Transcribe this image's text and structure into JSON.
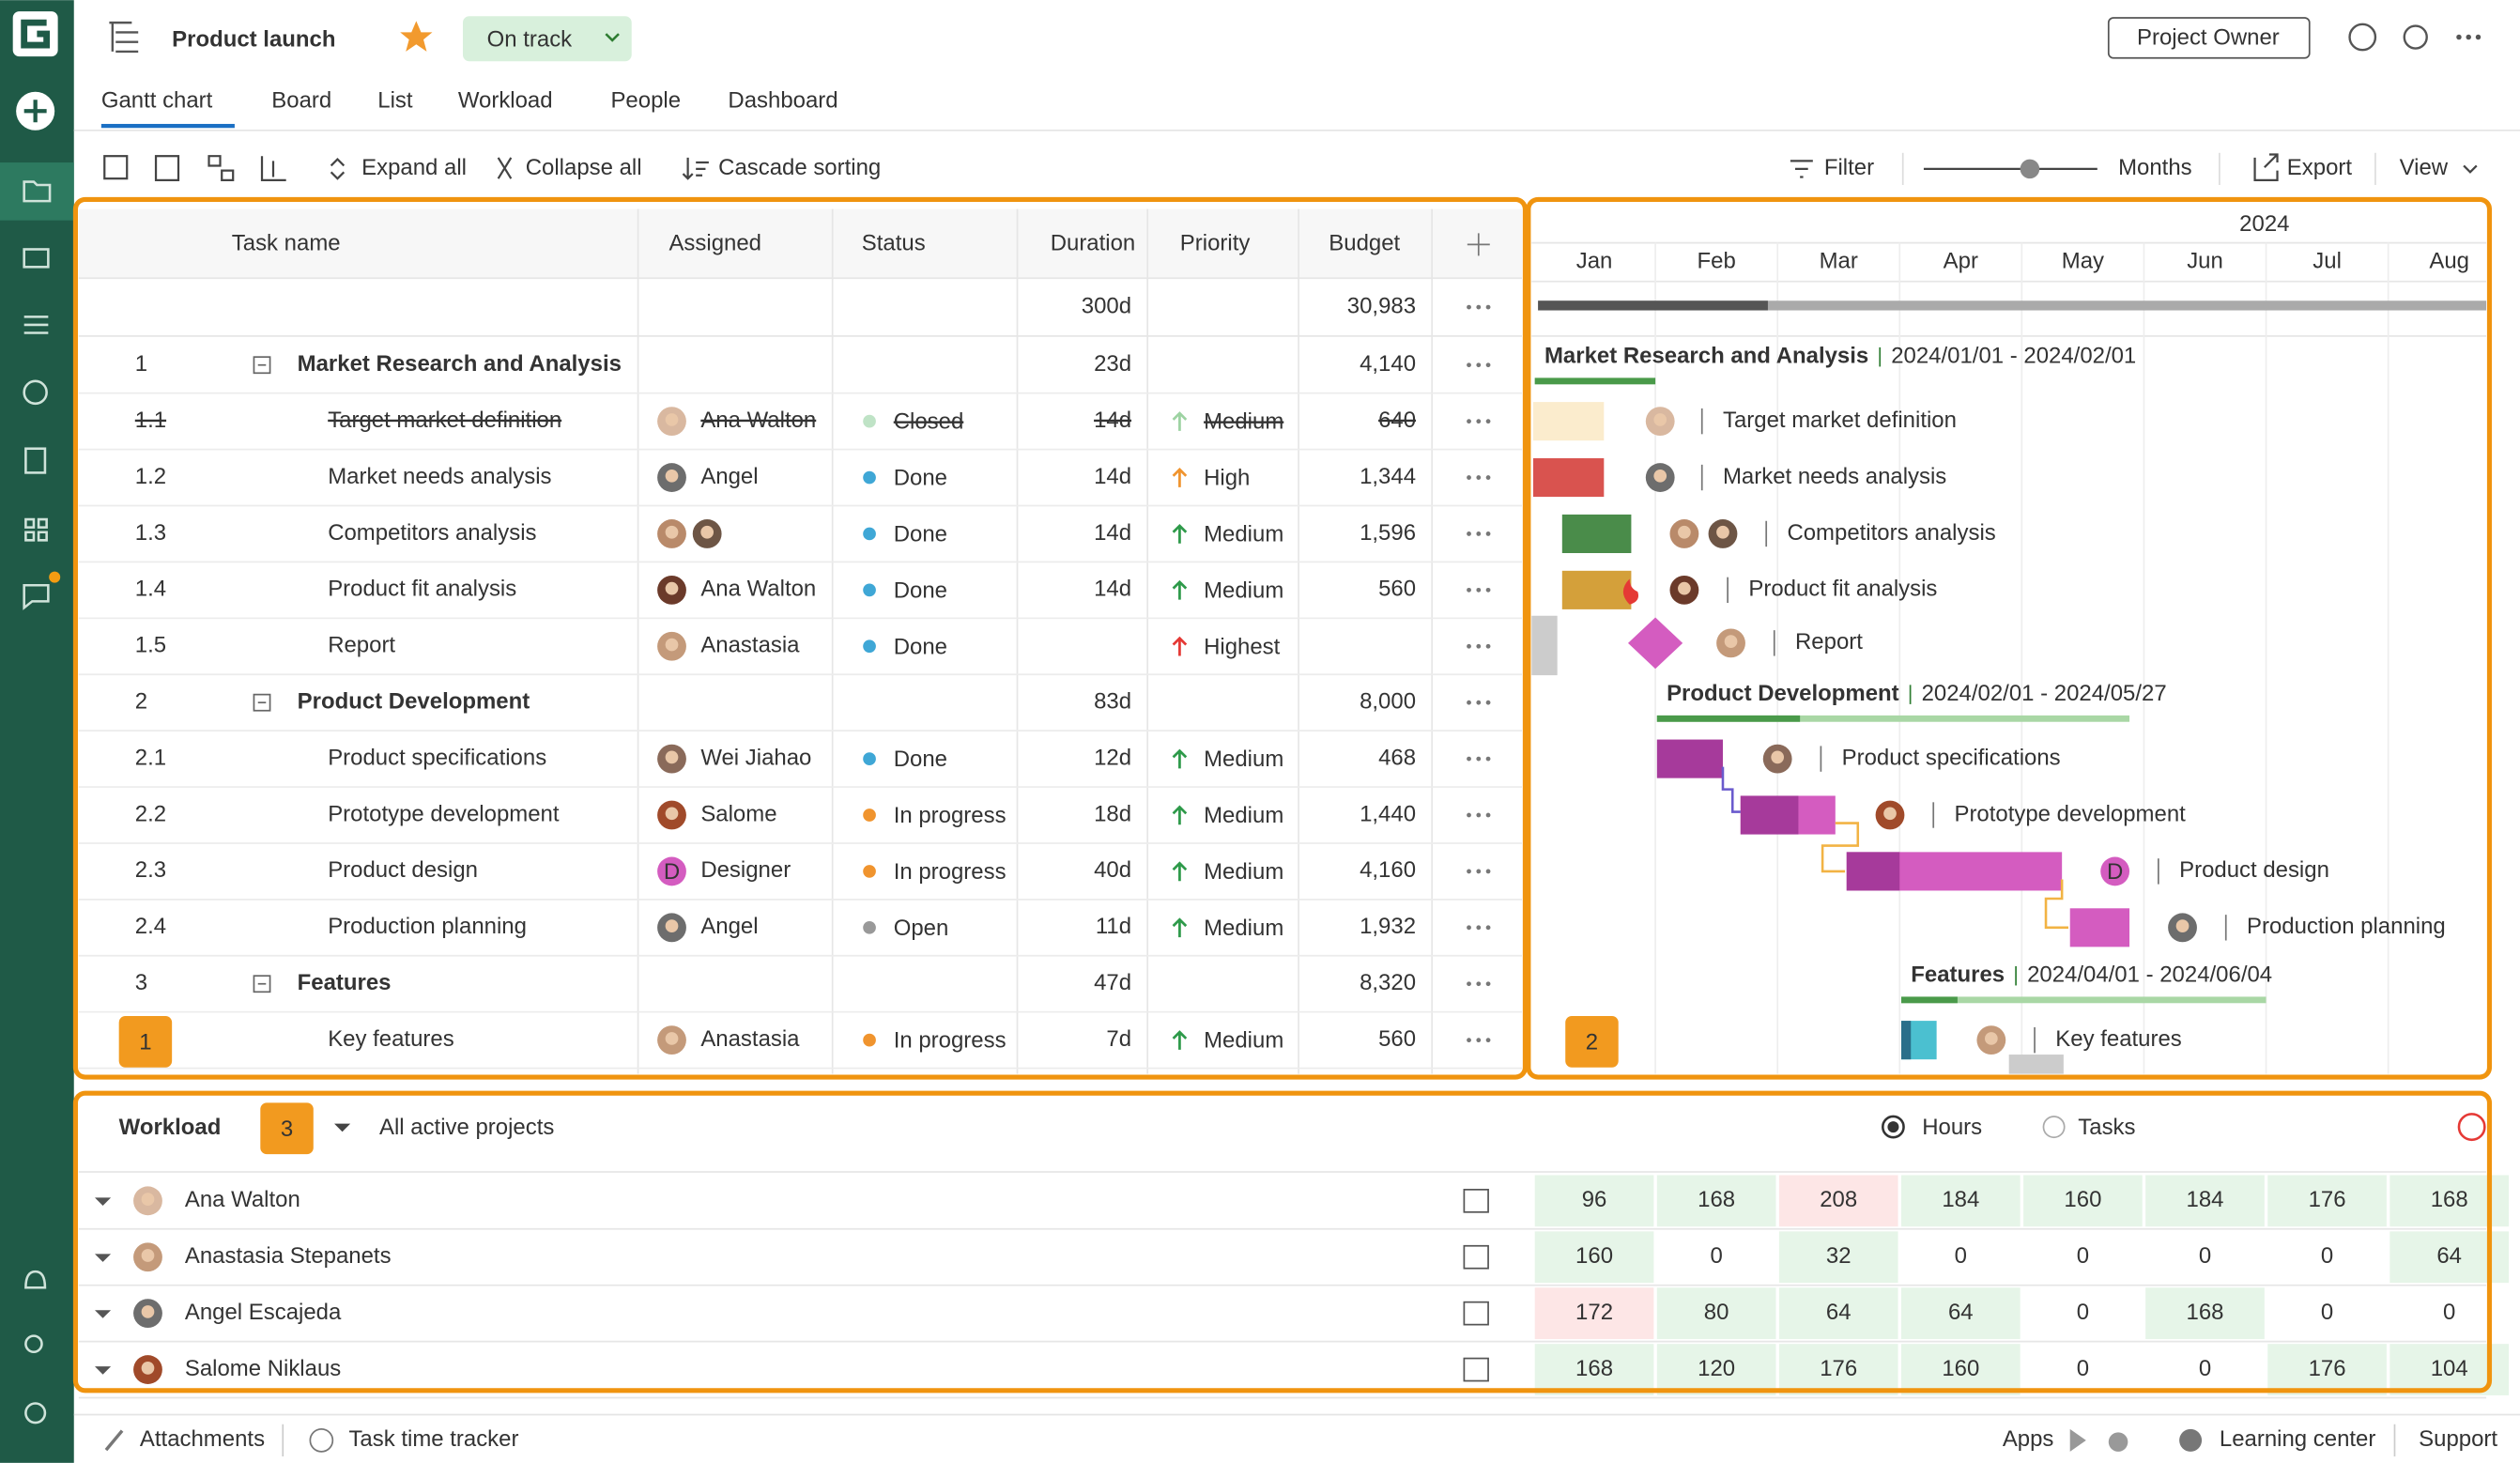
{
  "header": {
    "title": "Product launch",
    "status": "On track",
    "role": "Project Owner"
  },
  "tabs": [
    "Gantt chart",
    "Board",
    "List",
    "Workload",
    "People",
    "Dashboard"
  ],
  "toolbar": {
    "expand": "Expand all",
    "collapse": "Collapse all",
    "sorting": "Cascade sorting",
    "filter": "Filter",
    "zoom": "Months",
    "export": "Export",
    "view": "View"
  },
  "grid": {
    "columns": [
      "Task name",
      "Assigned",
      "Status",
      "Duration",
      "Priority",
      "Budget"
    ],
    "total": {
      "duration": "300d",
      "budget": "30,983"
    },
    "rows": [
      {
        "num": "1",
        "name": "Market Research and Analysis",
        "duration": "23d",
        "budget": "4,140"
      },
      {
        "num": "1.1",
        "name": "Target market definition",
        "assigned": "Ana Walton",
        "status": "Closed",
        "duration": "14d",
        "priority": "Medium",
        "budget": "640"
      },
      {
        "num": "1.2",
        "name": "Market needs analysis",
        "assigned": "Angel",
        "status": "Done",
        "duration": "14d",
        "priority": "High",
        "budget": "1,344"
      },
      {
        "num": "1.3",
        "name": "Competitors analysis",
        "status": "Done",
        "duration": "14d",
        "priority": "Medium",
        "budget": "1,596"
      },
      {
        "num": "1.4",
        "name": "Product fit analysis",
        "assigned": "Ana Walton",
        "status": "Done",
        "duration": "14d",
        "priority": "Medium",
        "budget": "560"
      },
      {
        "num": "1.5",
        "name": "Report",
        "assigned": "Anastasia",
        "status": "Done",
        "priority": "Highest"
      },
      {
        "num": "2",
        "name": "Product Development",
        "duration": "83d",
        "budget": "8,000"
      },
      {
        "num": "2.1",
        "name": "Product specifications",
        "assigned": "Wei Jiahao",
        "status": "Done",
        "duration": "12d",
        "priority": "Medium",
        "budget": "468"
      },
      {
        "num": "2.2",
        "name": "Prototype development",
        "assigned": "Salome",
        "status": "In progress",
        "duration": "18d",
        "priority": "Medium",
        "budget": "1,440"
      },
      {
        "num": "2.3",
        "name": "Product design",
        "assigned": "Designer",
        "avatar_letter": "D",
        "status": "In progress",
        "duration": "40d",
        "priority": "Medium",
        "budget": "4,160"
      },
      {
        "num": "2.4",
        "name": "Production planning",
        "assigned": "Angel",
        "status": "Open",
        "duration": "11d",
        "priority": "Medium",
        "budget": "1,932"
      },
      {
        "num": "3",
        "name": "Features",
        "duration": "47d",
        "budget": "8,320"
      },
      {
        "name": "Key features",
        "assigned": "Anastasia",
        "status": "In progress",
        "duration": "7d",
        "priority": "Medium",
        "budget": "560"
      }
    ]
  },
  "timeline": {
    "year": "2024",
    "months": [
      "Jan",
      "Feb",
      "Mar",
      "Apr",
      "May",
      "Jun",
      "Jul",
      "Aug"
    ],
    "groups": [
      {
        "dates": "2024/01/01 - 2024/02/01"
      },
      {
        "dates": "2024/02/01 - 2024/05/27"
      },
      {
        "dates": "2024/04/01 - 2024/06/04"
      }
    ]
  },
  "workload": {
    "title": "Workload",
    "filter": "All active projects",
    "options": [
      "Hours",
      "Tasks"
    ],
    "people": [
      {
        "name": "Ana Walton",
        "hours": [
          96,
          168,
          208,
          184,
          160,
          184,
          176,
          168
        ]
      },
      {
        "name": "Anastasia Stepanets",
        "hours": [
          160,
          0,
          32,
          0,
          0,
          0,
          0,
          64
        ]
      },
      {
        "name": "Angel Escajeda",
        "hours": [
          172,
          80,
          64,
          64,
          0,
          168,
          0,
          0
        ]
      },
      {
        "name": "Salome Niklaus",
        "hours": [
          168,
          120,
          176,
          160,
          0,
          0,
          176,
          104
        ]
      }
    ]
  },
  "badges": [
    "1",
    "2",
    "3"
  ],
  "footer": {
    "attachments": "Attachments",
    "tracker": "Task time tracker",
    "apps": "Apps",
    "learning": "Learning center",
    "support": "Support"
  }
}
